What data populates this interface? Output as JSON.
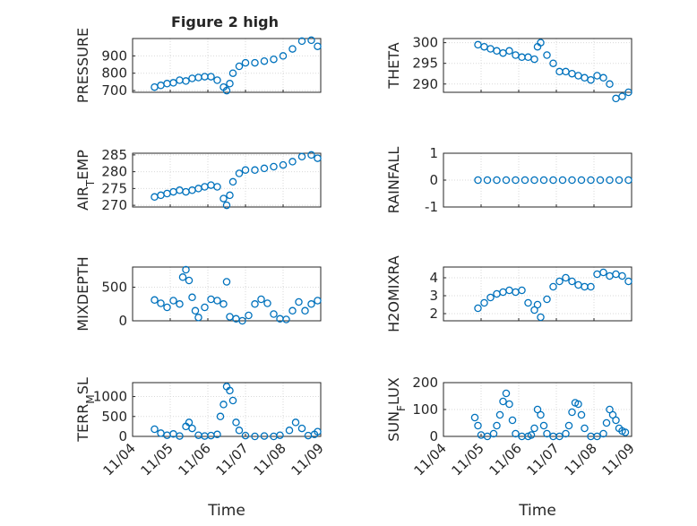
{
  "figure_title": "Figure 2 high",
  "chart_data": [
    {
      "type": "scatter",
      "id": "pressure",
      "title": "Figure 2 high",
      "ylabel": "PRESSURE",
      "xlabel": "",
      "ylim": [
        690,
        1000
      ],
      "yticks": [
        700,
        800,
        900
      ],
      "xlim": [
        "11/04",
        "11/09"
      ],
      "xticks": [],
      "grid": true,
      "series": [
        {
          "x": [
            "11/04 14:00",
            "11/04 18:00",
            "11/04 22:00",
            "11/05 02:00",
            "11/05 06:00",
            "11/05 10:00",
            "11/05 14:00",
            "11/05 18:00",
            "11/05 22:00",
            "11/06 02:00",
            "11/06 06:00",
            "11/06 10:00",
            "11/06 12:00",
            "11/06 14:00",
            "11/06 16:00",
            "11/06 20:00",
            "11/07 00:00",
            "11/07 06:00",
            "11/07 12:00",
            "11/07 18:00",
            "11/08 00:00",
            "11/08 06:00",
            "11/08 12:00",
            "11/08 18:00",
            "11/08 22:00"
          ],
          "values": [
            720,
            730,
            740,
            745,
            760,
            755,
            770,
            775,
            780,
            780,
            760,
            720,
            700,
            740,
            800,
            840,
            860,
            860,
            870,
            880,
            900,
            940,
            985,
            990,
            955
          ]
        }
      ]
    },
    {
      "type": "scatter",
      "id": "theta",
      "ylabel": "THETA",
      "xlabel": "",
      "ylim": [
        288,
        301
      ],
      "yticks": [
        290,
        295,
        300
      ],
      "xlim": [
        "11/04",
        "11/09"
      ],
      "xticks": [],
      "grid": true,
      "series": [
        {
          "x": [
            "11/04 22:00",
            "11/05 02:00",
            "11/05 06:00",
            "11/05 10:00",
            "11/05 14:00",
            "11/05 18:00",
            "11/05 22:00",
            "11/06 02:00",
            "11/06 06:00",
            "11/06 10:00",
            "11/06 12:00",
            "11/06 14:00",
            "11/06 18:00",
            "11/06 22:00",
            "11/07 02:00",
            "11/07 06:00",
            "11/07 10:00",
            "11/07 14:00",
            "11/07 18:00",
            "11/07 22:00",
            "11/08 02:00",
            "11/08 06:00",
            "11/08 10:00",
            "11/08 14:00",
            "11/08 18:00",
            "11/08 22:00"
          ],
          "values": [
            299.5,
            299,
            298.5,
            298,
            297.5,
            298,
            297,
            296.5,
            296.5,
            296,
            299,
            300,
            297,
            295,
            293,
            293,
            292.5,
            292,
            291.5,
            291,
            292,
            291.5,
            290,
            286.5,
            287,
            288
          ]
        }
      ]
    },
    {
      "type": "scatter",
      "id": "air-temp",
      "ylabel": "AIR_TEMP",
      "xlabel": "",
      "ylim": [
        269.5,
        285.5
      ],
      "yticks": [
        270,
        275,
        280,
        285
      ],
      "xlim": [
        "11/04",
        "11/09"
      ],
      "xticks": [],
      "grid": true,
      "series": [
        {
          "x": [
            "11/04 14:00",
            "11/04 18:00",
            "11/04 22:00",
            "11/05 02:00",
            "11/05 06:00",
            "11/05 10:00",
            "11/05 14:00",
            "11/05 18:00",
            "11/05 22:00",
            "11/06 02:00",
            "11/06 06:00",
            "11/06 10:00",
            "11/06 12:00",
            "11/06 14:00",
            "11/06 16:00",
            "11/06 20:00",
            "11/07 00:00",
            "11/07 06:00",
            "11/07 12:00",
            "11/07 18:00",
            "11/08 00:00",
            "11/08 06:00",
            "11/08 12:00",
            "11/08 18:00",
            "11/08 22:00"
          ],
          "values": [
            272.5,
            273,
            273.5,
            274,
            274.5,
            274,
            274.5,
            275,
            275.5,
            276,
            275.5,
            272,
            270,
            273,
            277,
            279.5,
            280.5,
            280.5,
            281,
            281.5,
            282,
            283,
            284.5,
            285,
            284
          ]
        }
      ]
    },
    {
      "type": "scatter",
      "id": "rainfall",
      "ylabel": "RAINFALL",
      "xlabel": "",
      "ylim": [
        -1,
        1
      ],
      "yticks": [
        -1,
        0,
        1
      ],
      "xlim": [
        "11/04",
        "11/09"
      ],
      "xticks": [],
      "grid": true,
      "series": [
        {
          "x": [
            "11/04 22:00",
            "11/05 04:00",
            "11/05 10:00",
            "11/05 16:00",
            "11/05 22:00",
            "11/06 04:00",
            "11/06 10:00",
            "11/06 16:00",
            "11/06 22:00",
            "11/07 04:00",
            "11/07 10:00",
            "11/07 16:00",
            "11/07 22:00",
            "11/08 04:00",
            "11/08 10:00",
            "11/08 16:00",
            "11/08 22:00"
          ],
          "values": [
            0,
            0,
            0,
            0,
            0,
            0,
            0,
            0,
            0,
            0,
            0,
            0,
            0,
            0,
            0,
            0,
            0
          ]
        }
      ]
    },
    {
      "type": "scatter",
      "id": "mixdepth",
      "ylabel": "MIXDEPTH",
      "xlabel": "",
      "ylim": [
        0,
        800
      ],
      "yticks": [
        0,
        500
      ],
      "xlim": [
        "11/04",
        "11/09"
      ],
      "xticks": [],
      "grid": true,
      "series": [
        {
          "x": [
            "11/04 14:00",
            "11/04 18:00",
            "11/04 22:00",
            "11/05 02:00",
            "11/05 06:00",
            "11/05 08:00",
            "11/05 10:00",
            "11/05 12:00",
            "11/05 14:00",
            "11/05 16:00",
            "11/05 18:00",
            "11/05 22:00",
            "11/06 02:00",
            "11/06 06:00",
            "11/06 10:00",
            "11/06 12:00",
            "11/06 14:00",
            "11/06 18:00",
            "11/06 22:00",
            "11/07 02:00",
            "11/07 06:00",
            "11/07 10:00",
            "11/07 14:00",
            "11/07 18:00",
            "11/07 22:00",
            "11/08 02:00",
            "11/08 06:00",
            "11/08 10:00",
            "11/08 14:00",
            "11/08 18:00",
            "11/08 22:00"
          ],
          "values": [
            310,
            260,
            200,
            300,
            250,
            650,
            760,
            600,
            350,
            150,
            50,
            200,
            320,
            300,
            250,
            580,
            60,
            30,
            0,
            80,
            250,
            320,
            260,
            100,
            30,
            20,
            150,
            280,
            150,
            250,
            300
          ]
        }
      ]
    },
    {
      "type": "scatter",
      "id": "h2omixra",
      "ylabel": "H2OMIXRA",
      "xlabel": "",
      "ylim": [
        1.6,
        4.6
      ],
      "yticks": [
        2,
        3,
        4
      ],
      "xlim": [
        "11/04",
        "11/09"
      ],
      "xticks": [],
      "grid": true,
      "series": [
        {
          "x": [
            "11/04 22:00",
            "11/05 02:00",
            "11/05 06:00",
            "11/05 10:00",
            "11/05 14:00",
            "11/05 18:00",
            "11/05 22:00",
            "11/06 02:00",
            "11/06 06:00",
            "11/06 10:00",
            "11/06 12:00",
            "11/06 14:00",
            "11/06 18:00",
            "11/06 22:00",
            "11/07 02:00",
            "11/07 06:00",
            "11/07 10:00",
            "11/07 14:00",
            "11/07 18:00",
            "11/07 22:00",
            "11/08 02:00",
            "11/08 06:00",
            "11/08 10:00",
            "11/08 14:00",
            "11/08 18:00",
            "11/08 22:00"
          ],
          "values": [
            2.3,
            2.6,
            2.9,
            3.1,
            3.2,
            3.3,
            3.2,
            3.3,
            2.6,
            2.2,
            2.5,
            1.8,
            2.8,
            3.5,
            3.8,
            4.0,
            3.8,
            3.6,
            3.5,
            3.5,
            4.2,
            4.3,
            4.1,
            4.2,
            4.1,
            3.8
          ]
        }
      ]
    },
    {
      "type": "scatter",
      "id": "terr-msl",
      "ylabel": "TERR_MSL",
      "xlabel": "Time",
      "ylim": [
        0,
        1350
      ],
      "yticks": [
        0,
        500,
        1000
      ],
      "xlim": [
        "11/04",
        "11/09"
      ],
      "xticks": [
        "11/04",
        "11/05",
        "11/06",
        "11/07",
        "11/08",
        "11/09"
      ],
      "grid": true,
      "series": [
        {
          "x": [
            "11/04 14:00",
            "11/04 18:00",
            "11/04 22:00",
            "11/05 02:00",
            "11/05 06:00",
            "11/05 10:00",
            "11/05 12:00",
            "11/05 14:00",
            "11/05 18:00",
            "11/05 22:00",
            "11/06 02:00",
            "11/06 06:00",
            "11/06 08:00",
            "11/06 10:00",
            "11/06 12:00",
            "11/06 14:00",
            "11/06 16:00",
            "11/06 18:00",
            "11/06 20:00",
            "11/07 00:00",
            "11/07 06:00",
            "11/07 12:00",
            "11/07 18:00",
            "11/07 22:00",
            "11/08 04:00",
            "11/08 08:00",
            "11/08 12:00",
            "11/08 16:00",
            "11/08 20:00",
            "11/08 22:00"
          ],
          "values": [
            180,
            80,
            30,
            60,
            10,
            250,
            350,
            200,
            30,
            10,
            20,
            50,
            500,
            800,
            1250,
            1150,
            900,
            350,
            150,
            20,
            0,
            10,
            0,
            30,
            150,
            350,
            200,
            20,
            50,
            120
          ]
        }
      ]
    },
    {
      "type": "scatter",
      "id": "sun-flux",
      "ylabel": "SUN_FLUX",
      "xlabel": "Time",
      "ylim": [
        0,
        200
      ],
      "yticks": [
        0,
        100,
        200
      ],
      "xlim": [
        "11/04",
        "11/09"
      ],
      "xticks": [
        "11/04",
        "11/05",
        "11/06",
        "11/07",
        "11/08",
        "11/09"
      ],
      "grid": true,
      "series": [
        {
          "x": [
            "11/04 20:00",
            "11/04 22:00",
            "11/05 00:00",
            "11/05 04:00",
            "11/05 08:00",
            "11/05 10:00",
            "11/05 12:00",
            "11/05 14:00",
            "11/05 16:00",
            "11/05 18:00",
            "11/05 20:00",
            "11/05 22:00",
            "11/06 02:00",
            "11/06 06:00",
            "11/06 08:00",
            "11/06 10:00",
            "11/06 12:00",
            "11/06 14:00",
            "11/06 16:00",
            "11/06 18:00",
            "11/06 22:00",
            "11/07 02:00",
            "11/07 06:00",
            "11/07 08:00",
            "11/07 10:00",
            "11/07 12:00",
            "11/07 14:00",
            "11/07 16:00",
            "11/07 18:00",
            "11/07 22:00",
            "11/08 02:00",
            "11/08 06:00",
            "11/08 08:00",
            "11/08 10:00",
            "11/08 12:00",
            "11/08 14:00",
            "11/08 16:00",
            "11/08 18:00",
            "11/08 20:00"
          ],
          "values": [
            70,
            40,
            5,
            0,
            10,
            40,
            80,
            130,
            160,
            120,
            60,
            10,
            0,
            0,
            5,
            30,
            100,
            80,
            40,
            10,
            0,
            0,
            10,
            40,
            90,
            125,
            120,
            80,
            30,
            0,
            0,
            10,
            50,
            100,
            80,
            60,
            30,
            20,
            15
          ]
        }
      ]
    }
  ]
}
